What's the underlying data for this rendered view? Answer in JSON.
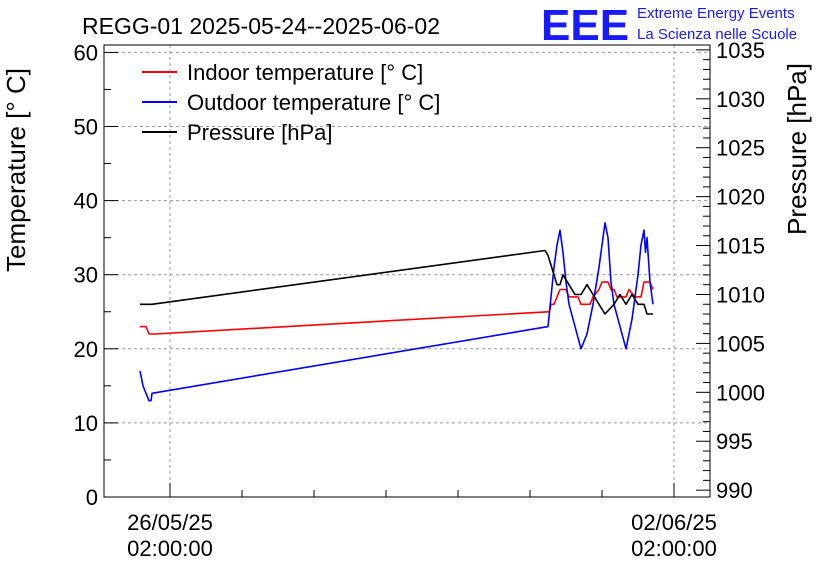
{
  "header": {
    "title": "REGG-01 2025-05-24--2025-06-02",
    "logo": "EEE",
    "brand_line1": "Extreme Energy Events",
    "brand_line2": "La Scienza nelle Scuole",
    "brand_color": "#1a1aff"
  },
  "chart_data": {
    "type": "line",
    "title": "REGG-01 2025-05-24--2025-06-02",
    "ylabel": "Temperature [° C]",
    "y2label": "Pressure [hPa]",
    "xlabel": "",
    "ylim": [
      0,
      61
    ],
    "y2lim": [
      989.3,
      1035.5
    ],
    "xlim": [
      "2025-05-25 04:00",
      "2025-06-02 14:00"
    ],
    "grid": true,
    "legend_position": "top-left",
    "y_ticks": [
      "0",
      "10",
      "20",
      "30",
      "40",
      "50",
      "60"
    ],
    "y2_ticks": [
      "990",
      "995",
      "1000",
      "1005",
      "1010",
      "1015",
      "1020",
      "1025",
      "1030",
      "1035"
    ],
    "x_ticks": [
      {
        "date": "26/05/25",
        "time": "02:00:00",
        "x": "2025-05-26 02:00"
      },
      {
        "date": "02/06/25",
        "time": "02:00:00",
        "x": "2025-06-02 02:00"
      }
    ],
    "series": [
      {
        "name": "Indoor temperature [° C]",
        "color": "#ff0000",
        "axis": "left",
        "points": [
          [
            "2025-05-25 16:00",
            23
          ],
          [
            "2025-05-25 18:00",
            23
          ],
          [
            "2025-05-25 19:00",
            22
          ],
          [
            "2025-05-25 21:00",
            22
          ],
          [
            "2025-05-31 08:00",
            25
          ],
          [
            "2025-05-31 08:30",
            25
          ],
          [
            "2025-05-31 09:00",
            26
          ],
          [
            "2025-05-31 10:00",
            26
          ],
          [
            "2025-05-31 11:00",
            27
          ],
          [
            "2025-05-31 12:00",
            28
          ],
          [
            "2025-05-31 14:00",
            28
          ],
          [
            "2025-05-31 15:00",
            27
          ],
          [
            "2025-05-31 18:00",
            27
          ],
          [
            "2025-05-31 19:00",
            26
          ],
          [
            "2025-05-31 22:00",
            26
          ],
          [
            "2025-05-31 23:00",
            27
          ],
          [
            "2025-06-01 01:00",
            28
          ],
          [
            "2025-06-01 02:00",
            29
          ],
          [
            "2025-06-01 04:00",
            29
          ],
          [
            "2025-06-01 05:00",
            28
          ],
          [
            "2025-06-01 06:00",
            28
          ],
          [
            "2025-06-01 07:00",
            27
          ],
          [
            "2025-06-01 10:00",
            27
          ],
          [
            "2025-06-01 11:00",
            28
          ],
          [
            "2025-06-01 13:00",
            27
          ],
          [
            "2025-06-01 15:00",
            27
          ],
          [
            "2025-06-01 16:00",
            29
          ],
          [
            "2025-06-01 18:00",
            29
          ],
          [
            "2025-06-01 19:00",
            28
          ]
        ]
      },
      {
        "name": "Outdoor temperature [° C]",
        "color": "#0000ff",
        "axis": "left",
        "points": [
          [
            "2025-05-25 16:00",
            17
          ],
          [
            "2025-05-25 16:30",
            16
          ],
          [
            "2025-05-25 17:00",
            15
          ],
          [
            "2025-05-25 17:30",
            14.5
          ],
          [
            "2025-05-25 18:00",
            14
          ],
          [
            "2025-05-25 19:00",
            13
          ],
          [
            "2025-05-25 19:40",
            13
          ],
          [
            "2025-05-25 20:00",
            14
          ],
          [
            "2025-05-31 08:00",
            23
          ],
          [
            "2025-05-31 09:00",
            27
          ],
          [
            "2025-05-31 10:00",
            31
          ],
          [
            "2025-05-31 11:00",
            34
          ],
          [
            "2025-05-31 12:00",
            36
          ],
          [
            "2025-05-31 13:00",
            33
          ],
          [
            "2025-05-31 14:00",
            29
          ],
          [
            "2025-05-31 15:00",
            26
          ],
          [
            "2025-05-31 17:00",
            23
          ],
          [
            "2025-05-31 19:00",
            20
          ],
          [
            "2025-05-31 21:00",
            22
          ],
          [
            "2025-05-31 23:00",
            26
          ],
          [
            "2025-06-01 01:00",
            31
          ],
          [
            "2025-06-01 02:00",
            34
          ],
          [
            "2025-06-01 03:00",
            37
          ],
          [
            "2025-06-01 04:00",
            35
          ],
          [
            "2025-06-01 05:00",
            29
          ],
          [
            "2025-06-01 06:00",
            26
          ],
          [
            "2025-06-01 08:00",
            23
          ],
          [
            "2025-06-01 10:00",
            20
          ],
          [
            "2025-06-01 12:00",
            24
          ],
          [
            "2025-06-01 14:00",
            30
          ],
          [
            "2025-06-01 15:00",
            34
          ],
          [
            "2025-06-01 16:00",
            36
          ],
          [
            "2025-06-01 16:30",
            33
          ],
          [
            "2025-06-01 17:00",
            35
          ],
          [
            "2025-06-01 18:00",
            29
          ],
          [
            "2025-06-01 19:00",
            26
          ]
        ]
      },
      {
        "name": "Pressure [hPa]",
        "color": "#000000",
        "axis": "right",
        "points": [
          [
            "2025-05-25 16:00",
            1009
          ],
          [
            "2025-05-25 20:00",
            1009
          ],
          [
            "2025-05-31 07:00",
            1014.5
          ],
          [
            "2025-05-31 08:00",
            1014
          ],
          [
            "2025-05-31 09:00",
            1013
          ],
          [
            "2025-05-31 10:00",
            1012
          ],
          [
            "2025-05-31 11:00",
            1011
          ],
          [
            "2025-05-31 12:00",
            1011
          ],
          [
            "2025-05-31 13:00",
            1012
          ],
          [
            "2025-05-31 15:00",
            1011
          ],
          [
            "2025-05-31 17:00",
            1010
          ],
          [
            "2025-05-31 19:00",
            1010
          ],
          [
            "2025-05-31 21:00",
            1011
          ],
          [
            "2025-05-31 23:00",
            1010
          ],
          [
            "2025-06-01 01:00",
            1009
          ],
          [
            "2025-06-01 03:00",
            1008
          ],
          [
            "2025-06-01 06:00",
            1009
          ],
          [
            "2025-06-01 08:00",
            1010
          ],
          [
            "2025-06-01 10:00",
            1009
          ],
          [
            "2025-06-01 12:00",
            1010
          ],
          [
            "2025-06-01 14:00",
            1009
          ],
          [
            "2025-06-01 16:00",
            1009
          ],
          [
            "2025-06-01 17:00",
            1008
          ],
          [
            "2025-06-01 19:00",
            1008
          ]
        ]
      }
    ]
  }
}
